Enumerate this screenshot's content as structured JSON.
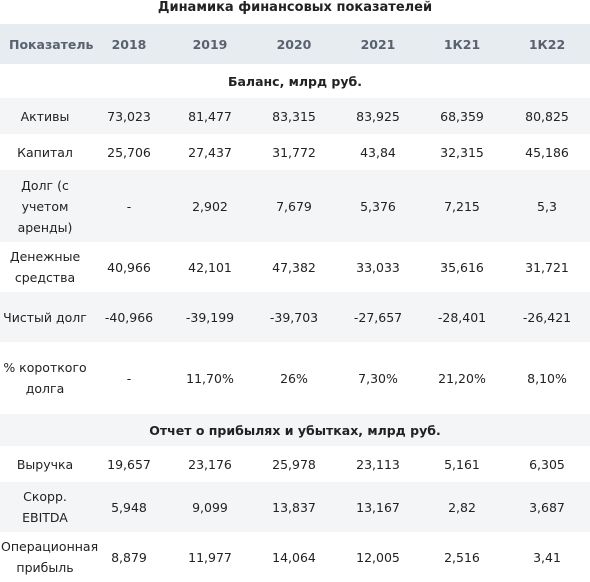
{
  "title": "Динамика финансовых показателей",
  "columns": [
    "Показатель",
    "2018",
    "2019",
    "2020",
    "2021",
    "1К21",
    "1К22"
  ],
  "sections": [
    {
      "name": "Баланс, млрд руб.",
      "rows": [
        {
          "label": "Активы",
          "values": [
            "73,023",
            "81,477",
            "83,315",
            "83,925",
            "68,359",
            "80,825"
          ]
        },
        {
          "label": "Капитал",
          "values": [
            "25,706",
            "27,437",
            "31,772",
            "43,84",
            "32,315",
            "45,186"
          ]
        },
        {
          "label": "Долг (с учетом аренды)",
          "values": [
            "-",
            "2,902",
            "7,679",
            "5,376",
            "7,215",
            "5,3"
          ]
        },
        {
          "label": "Денежные средства",
          "values": [
            "40,966",
            "42,101",
            "47,382",
            "33,033",
            "35,616",
            "31,721"
          ]
        },
        {
          "label": "Чистый долг",
          "values": [
            "-40,966",
            "-39,199",
            "-39,703",
            "-27,657",
            "-28,401",
            "-26,421"
          ]
        },
        {
          "label": "% короткого долга",
          "values": [
            "-",
            "11,70%",
            "26%",
            "7,30%",
            "21,20%",
            "8,10%"
          ]
        }
      ]
    },
    {
      "name": "Отчет о прибылях и убытках, млрд руб.",
      "rows": [
        {
          "label": "Выручка",
          "values": [
            "19,657",
            "23,176",
            "25,978",
            "23,113",
            "5,161",
            "6,305"
          ]
        },
        {
          "label": "Скорр. EBITDA",
          "values": [
            "5,948",
            "9,099",
            "13,837",
            "13,167",
            "2,82",
            "3,687"
          ]
        },
        {
          "label": "Операционная прибыль",
          "values": [
            "8,879",
            "11,977",
            "14,064",
            "12,005",
            "2,516",
            "3,41"
          ]
        }
      ]
    }
  ]
}
